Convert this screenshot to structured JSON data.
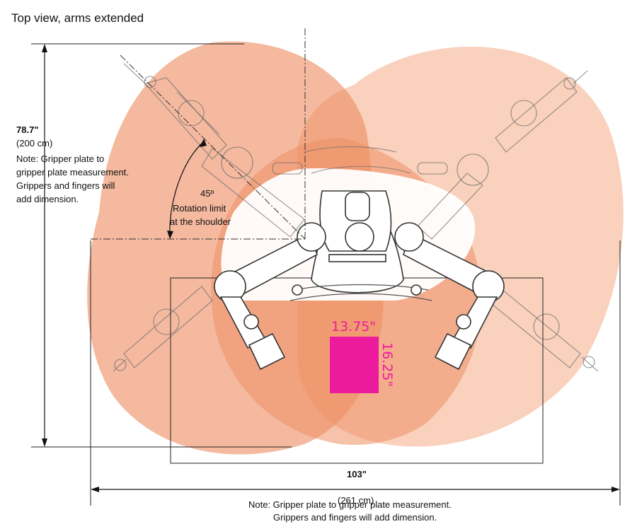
{
  "title": "Top  view, arms extended",
  "height_dimension": {
    "value": "78.7\"",
    "metric": "(200 cm)",
    "note_lines": [
      "Note: Gripper plate to",
      "gripper plate measurement.",
      "Grippers and fingers will",
      "add dimension."
    ]
  },
  "rotation": {
    "angle": "45º",
    "line1": "Rotation limit",
    "line2": "at the shoulder"
  },
  "width_dimension": {
    "value": "103\"",
    "metric": "(261 cm)",
    "note_line1": "Note: Gripper plate to gripper plate measurement.",
    "note_line2": "Grippers and fingers will add dimension."
  },
  "payload": {
    "width_label": "13.75\"",
    "height_label": "16.25\"",
    "color": "#ec1a9c"
  },
  "colors": {
    "left_zone": "#ec8a5f",
    "right_zone": "#f7c2a6",
    "overlap_zone": "#ee9064"
  }
}
